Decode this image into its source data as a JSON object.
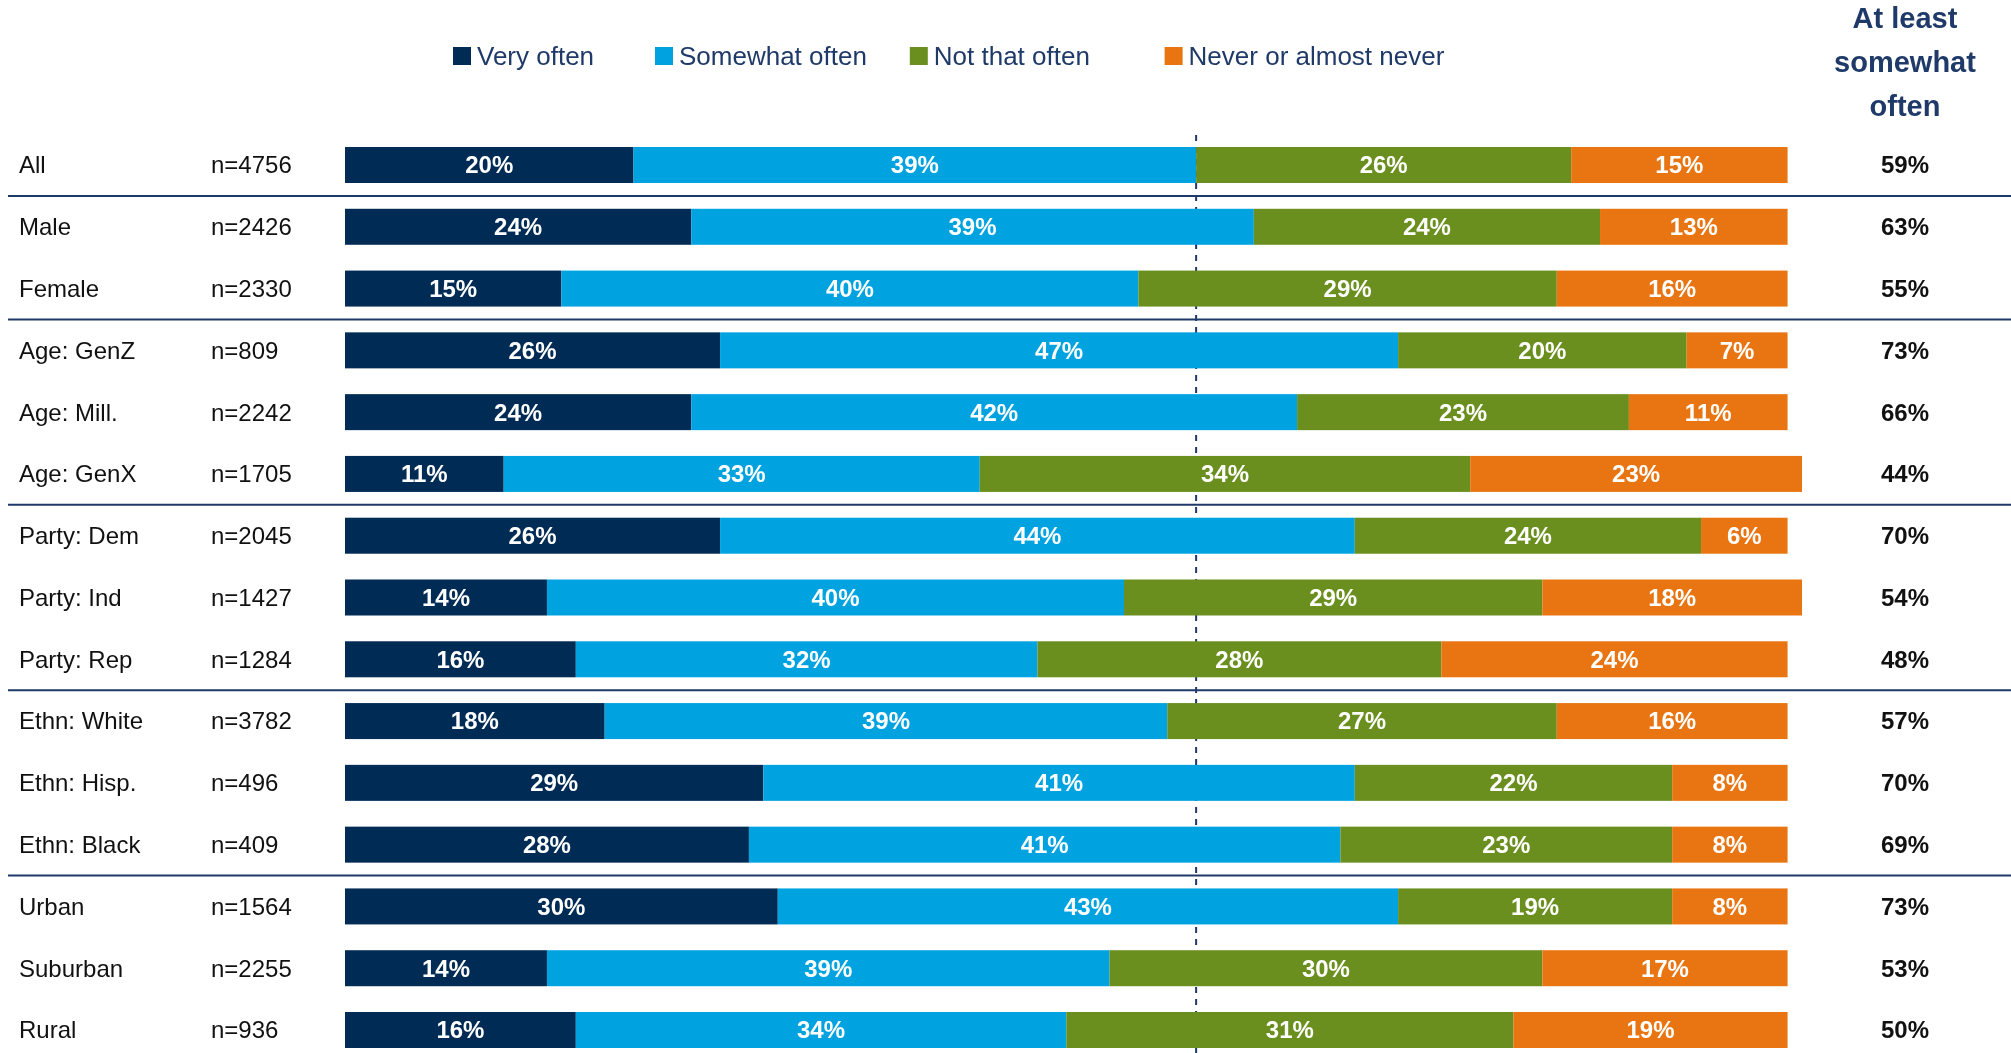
{
  "chart_data": {
    "type": "bar",
    "orientation": "horizontal",
    "stacked": true,
    "legend": "top",
    "tick_labels": "y",
    "xlim": [
      0,
      101
    ],
    "categories": [
      "All",
      "Male",
      "Female",
      "Age: GenZ",
      "Age: Mill.",
      "Age: GenX",
      "Party: Dem",
      "Party: Ind",
      "Party: Rep",
      "Ethn: White",
      "Ethn: Hisp.",
      "Ethn: Black",
      "Urban",
      "Suburban",
      "Rural"
    ],
    "series": [
      {
        "name": "Very often",
        "color": "#002b54",
        "values": [
          20,
          24,
          15,
          26,
          24,
          11,
          26,
          14,
          16,
          18,
          29,
          28,
          30,
          14,
          16
        ],
        "value_labels": [
          "20%",
          "24%",
          "15%",
          "26%",
          "24%",
          "11%",
          "26%",
          "14%",
          "16%",
          "18%",
          "29%",
          "28%",
          "30%",
          "14%",
          "16%"
        ]
      },
      {
        "name": "Somewhat often",
        "color": "#00a3e0",
        "values": [
          39,
          39,
          40,
          47,
          42,
          33,
          44,
          40,
          32,
          39,
          41,
          41,
          43,
          39,
          34
        ],
        "value_labels": [
          "39%",
          "39%",
          "40%",
          "47%",
          "42%",
          "33%",
          "44%",
          "40%",
          "32%",
          "39%",
          "41%",
          "41%",
          "43%",
          "39%",
          "34%"
        ]
      },
      {
        "name": "Not that often",
        "color": "#6a8f1f",
        "values": [
          26,
          24,
          29,
          20,
          23,
          34,
          24,
          29,
          28,
          27,
          22,
          23,
          19,
          30,
          31
        ],
        "value_labels": [
          "26%",
          "24%",
          "29%",
          "20%",
          "23%",
          "34%",
          "24%",
          "29%",
          "28%",
          "27%",
          "22%",
          "23%",
          "19%",
          "30%",
          "31%"
        ]
      },
      {
        "name": "Never or almost never",
        "color": "#e87511",
        "values": [
          15,
          13,
          16,
          7,
          11,
          23,
          6,
          18,
          24,
          16,
          8,
          8,
          8,
          17,
          19
        ],
        "value_labels": [
          "15%",
          "13%",
          "16%",
          "7%",
          "11%",
          "23%",
          "6%",
          "18%",
          "24%",
          "16%",
          "8%",
          "8%",
          "8%",
          "17%",
          "19%"
        ]
      }
    ],
    "ref_lines": [
      {
        "axis": "x",
        "value": 59,
        "color": "#1f3a68",
        "line_style": "dashed"
      }
    ],
    "annotations": [
      "n=4756",
      "n=2426",
      "n=2330",
      "n=809",
      "n=2242",
      "n=1705",
      "n=2045",
      "n=1427",
      "n=1284",
      "n=3782",
      "n=496",
      "n=409",
      "n=1564",
      "n=2255",
      "n=936",
      "At least somewhat often",
      "59%",
      "63%",
      "55%",
      "73%",
      "66%",
      "44%",
      "70%",
      "54%",
      "48%",
      "57%",
      "70%",
      "69%",
      "73%",
      "53%",
      "50%"
    ]
  }
}
